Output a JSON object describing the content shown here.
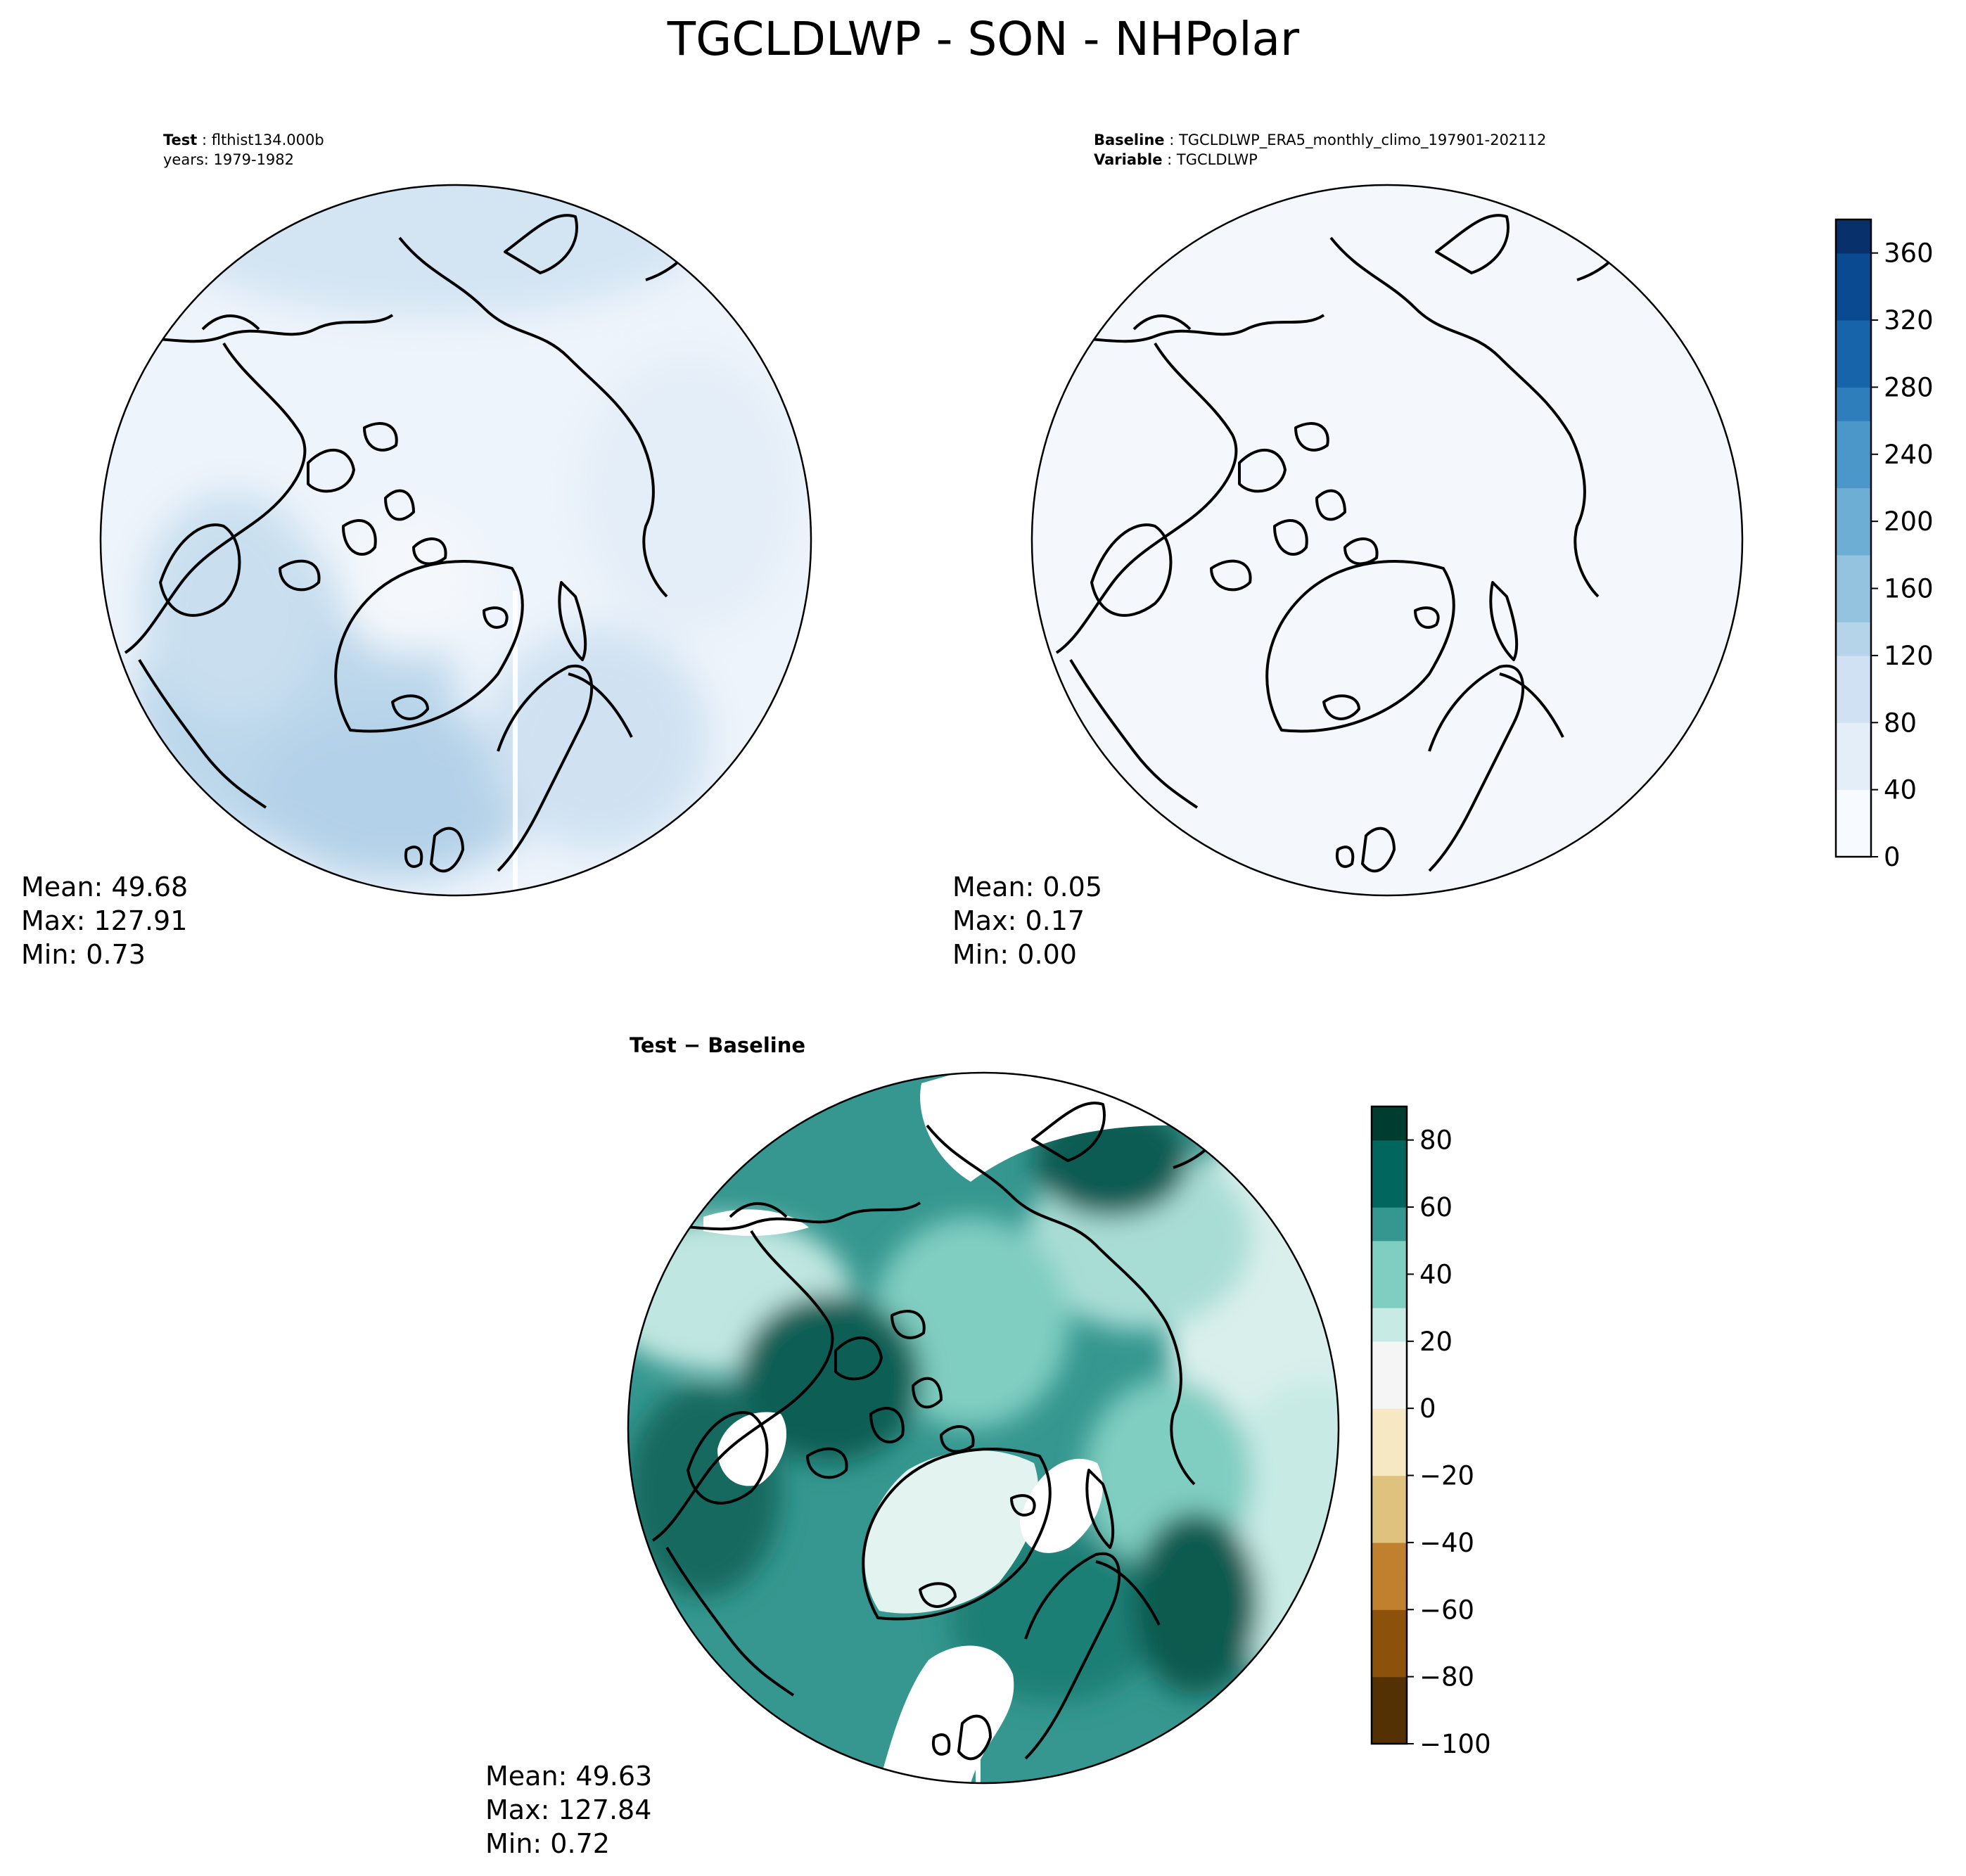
{
  "figure": {
    "title": "TGCLDLWP - SON - NHPolar"
  },
  "colors": {
    "blues": [
      "#f7fbff",
      "#e3eef9",
      "#cfe1f2",
      "#b5d4e9",
      "#93c3df",
      "#6daed5",
      "#4b97c9",
      "#2f7ebc",
      "#1864aa",
      "#0a4a90",
      "#08306b"
    ],
    "brbg_neg": [
      "#543005",
      "#8c510a",
      "#bf812d",
      "#dfc27d",
      "#f6e8c3"
    ],
    "brbg_pos": [
      "#f5f5f5",
      "#c7eae5",
      "#80cdc1",
      "#35978f",
      "#01665e",
      "#003c30"
    ],
    "coast": "#000000"
  },
  "chart_data": [
    {
      "type": "heatmap",
      "panel": "test",
      "projection": "north polar stereographic",
      "header": [
        {
          "label": "Test",
          "value": "flthist134.000b"
        },
        {
          "label": "",
          "value": "years: 1979-1982"
        }
      ],
      "stats": {
        "mean": "Mean: 49.68",
        "max": "Max: 127.91",
        "min": "Min:  0.73"
      },
      "colormap": "Blues",
      "range": [
        0,
        380
      ]
    },
    {
      "type": "heatmap",
      "panel": "baseline",
      "projection": "north polar stereographic",
      "header": [
        {
          "label": "Baseline",
          "value": "TGCLDLWP_ERA5_monthly_climo_197901-202112"
        },
        {
          "label": "Variable",
          "value": "TGCLDLWP"
        }
      ],
      "stats": {
        "mean": "Mean:  0.05",
        "max": "Max:  0.17",
        "min": "Min:  0.00"
      },
      "colormap": "Blues",
      "range": [
        0,
        380
      ],
      "colorbar": {
        "ticks": [
          "0",
          "40",
          "80",
          "120",
          "160",
          "200",
          "240",
          "280",
          "320",
          "360"
        ],
        "tick_values": [
          0,
          40,
          80,
          120,
          160,
          200,
          240,
          280,
          320,
          360
        ],
        "range": [
          0,
          380
        ]
      }
    },
    {
      "type": "heatmap",
      "panel": "difference",
      "projection": "north polar stereographic",
      "header": [
        {
          "label": "Test − Baseline",
          "value": ""
        }
      ],
      "stats": {
        "mean": "Mean: 49.63",
        "max": "Max: 127.84",
        "min": "Min:  0.72"
      },
      "colormap": "BrBG",
      "range": [
        -100,
        90
      ],
      "colorbar": {
        "ticks": [
          "−100",
          "−80",
          "−60",
          "−40",
          "−20",
          "0",
          "20",
          "40",
          "60",
          "80"
        ],
        "tick_values": [
          -100,
          -80,
          -60,
          -40,
          -20,
          0,
          20,
          40,
          60,
          80
        ],
        "range": [
          -100,
          90
        ]
      }
    }
  ]
}
